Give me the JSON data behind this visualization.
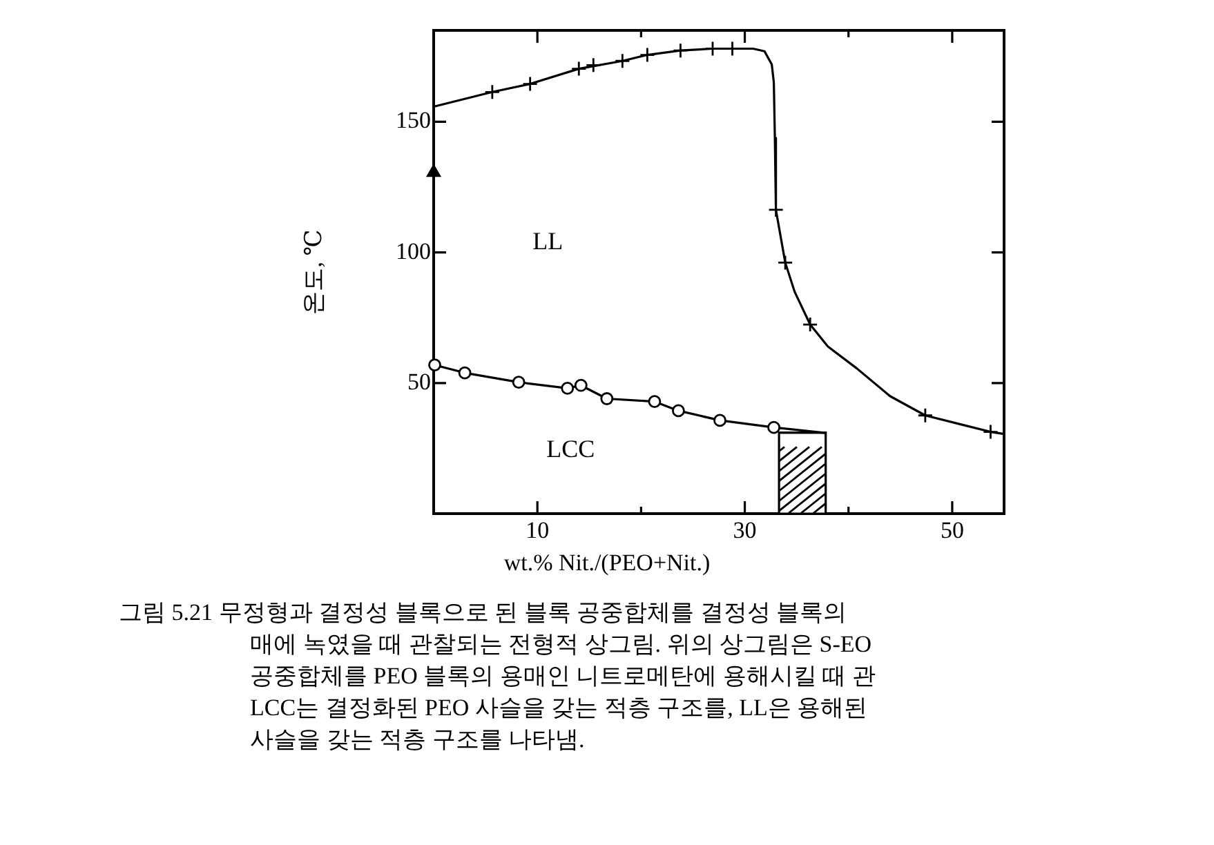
{
  "chart_data": {
    "type": "line",
    "xlabel": "wt.% Nit./(PEO+Nit.)",
    "ylabel": "온도, ℃",
    "xlim": [
      0,
      55
    ],
    "xticks": [
      10,
      {
        "value": 20,
        "label": null
      },
      30,
      {
        "value": 40,
        "label": null
      },
      50
    ],
    "ylim": [
      0,
      185
    ],
    "yticks": [
      50,
      100,
      150
    ],
    "grid": false,
    "legend": false,
    "series": [
      {
        "color": "#000000",
        "marker": "none",
        "x": [
          0,
          5.65,
          9.3,
          14,
          18.2,
          20.6,
          23.8,
          26.9,
          28.8,
          30.8,
          31.9,
          32.6,
          32.8,
          32.9,
          33,
          33.9,
          34.8,
          36.3,
          38,
          40.8,
          44,
          47.4,
          51,
          53.7,
          55
        ],
        "values": [
          155.8,
          161.4,
          164.5,
          170.3,
          173.3,
          175.6,
          177.3,
          178,
          178,
          178,
          177,
          172,
          165,
          143.8,
          116.3,
          96.1,
          85,
          72.4,
          64,
          55.6,
          45,
          37.6,
          34,
          31.3,
          30.5
        ]
      },
      {
        "type": "scatter",
        "color": "#000000",
        "marker": "cross",
        "x": [
          5.65,
          9.3,
          14,
          15.4,
          18.2,
          20.6,
          23.8,
          26.9,
          28.8,
          33,
          33.9,
          36.3,
          47.4,
          53.7
        ],
        "values": [
          161.4,
          164.5,
          170.3,
          171.7,
          173.3,
          175.6,
          177.3,
          178,
          178,
          116.3,
          96.1,
          72.4,
          37.6,
          31.3
        ]
      },
      {
        "type": "scatter",
        "color": "#000000",
        "marker": "triangle",
        "x": [
          0
        ],
        "values": [
          130.6
        ]
      },
      {
        "color": "#000000",
        "marker": "circle",
        "x": [
          0.1,
          3,
          8.2,
          12.9,
          14.2,
          16.7,
          21.3,
          23.6,
          27.6,
          32.8,
          37.8
        ],
        "values": [
          56.9,
          53.9,
          50.3,
          48,
          49.1,
          44,
          42.9,
          39.4,
          35.7,
          33,
          30.9
        ]
      },
      {
        "type": "area",
        "color": "#000000",
        "marker": "none",
        "x": [
          33.3,
          37.8
        ],
        "values": [
          31,
          31
        ]
      }
    ],
    "annotations": [
      "LL",
      "LCC",
      "그림 5.21 무정형과 결정성 블록으로 된 블록 공중합체를 결정성 블록의",
      "매에 녹였을 때 관찰되는 전형적 상그림. 위의 상그림은 S-EO",
      "공중합체를 PEO 블록의 용매인 니트로메탄에 용해시킬 때 관",
      "LCC는 결정화된 PEO 사슬을 갖는 적층 구조를, LL은 용해된",
      "사슬을 갖는 적층 구조를 나타냄."
    ]
  }
}
